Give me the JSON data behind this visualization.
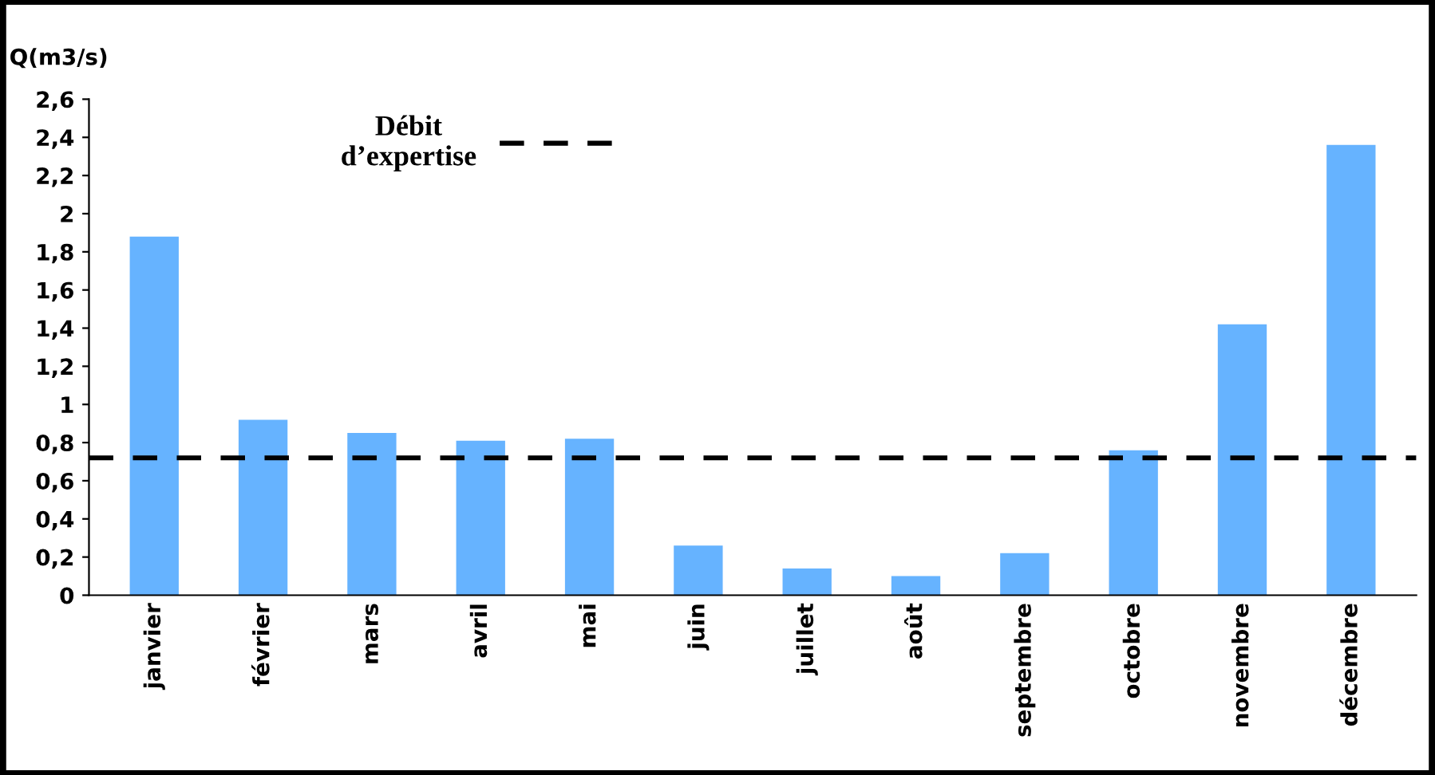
{
  "chart_data": {
    "type": "bar",
    "ylabel": "Q(m3/s)",
    "categories": [
      "janvier",
      "février",
      "mars",
      "avril",
      "mai",
      "juin",
      "juillet",
      "août",
      "septembre",
      "octobre",
      "novembre",
      "décembre"
    ],
    "values": [
      1.88,
      0.92,
      0.85,
      0.81,
      0.82,
      0.26,
      0.14,
      0.1,
      0.22,
      0.76,
      1.42,
      2.36
    ],
    "color": "#66b3ff",
    "ylim": [
      0,
      2.6
    ],
    "yticks": [
      0,
      {
        "value": 0.2,
        "label": "0,2"
      },
      {
        "value": 0.4,
        "label": "0,4"
      },
      {
        "value": 0.6,
        "label": "0,6"
      },
      {
        "value": 0.8,
        "label": "0,8"
      },
      1,
      {
        "value": 1.2,
        "label": "1,2"
      },
      {
        "value": 1.4,
        "label": "1,4"
      },
      {
        "value": 1.6,
        "label": "1,6"
      },
      {
        "value": 1.8,
        "label": "1,8"
      },
      2,
      {
        "value": 2.2,
        "label": "2,2"
      },
      {
        "value": 2.4,
        "label": "2,4"
      },
      {
        "value": 2.6,
        "label": "2,6"
      }
    ],
    "ref_lines": [
      {
        "axis": "y",
        "value": 0.72,
        "label": "Débit\nd’expertise",
        "color": "#000000",
        "line_style": "dashed"
      }
    ],
    "grid": false,
    "legend": "top left"
  }
}
